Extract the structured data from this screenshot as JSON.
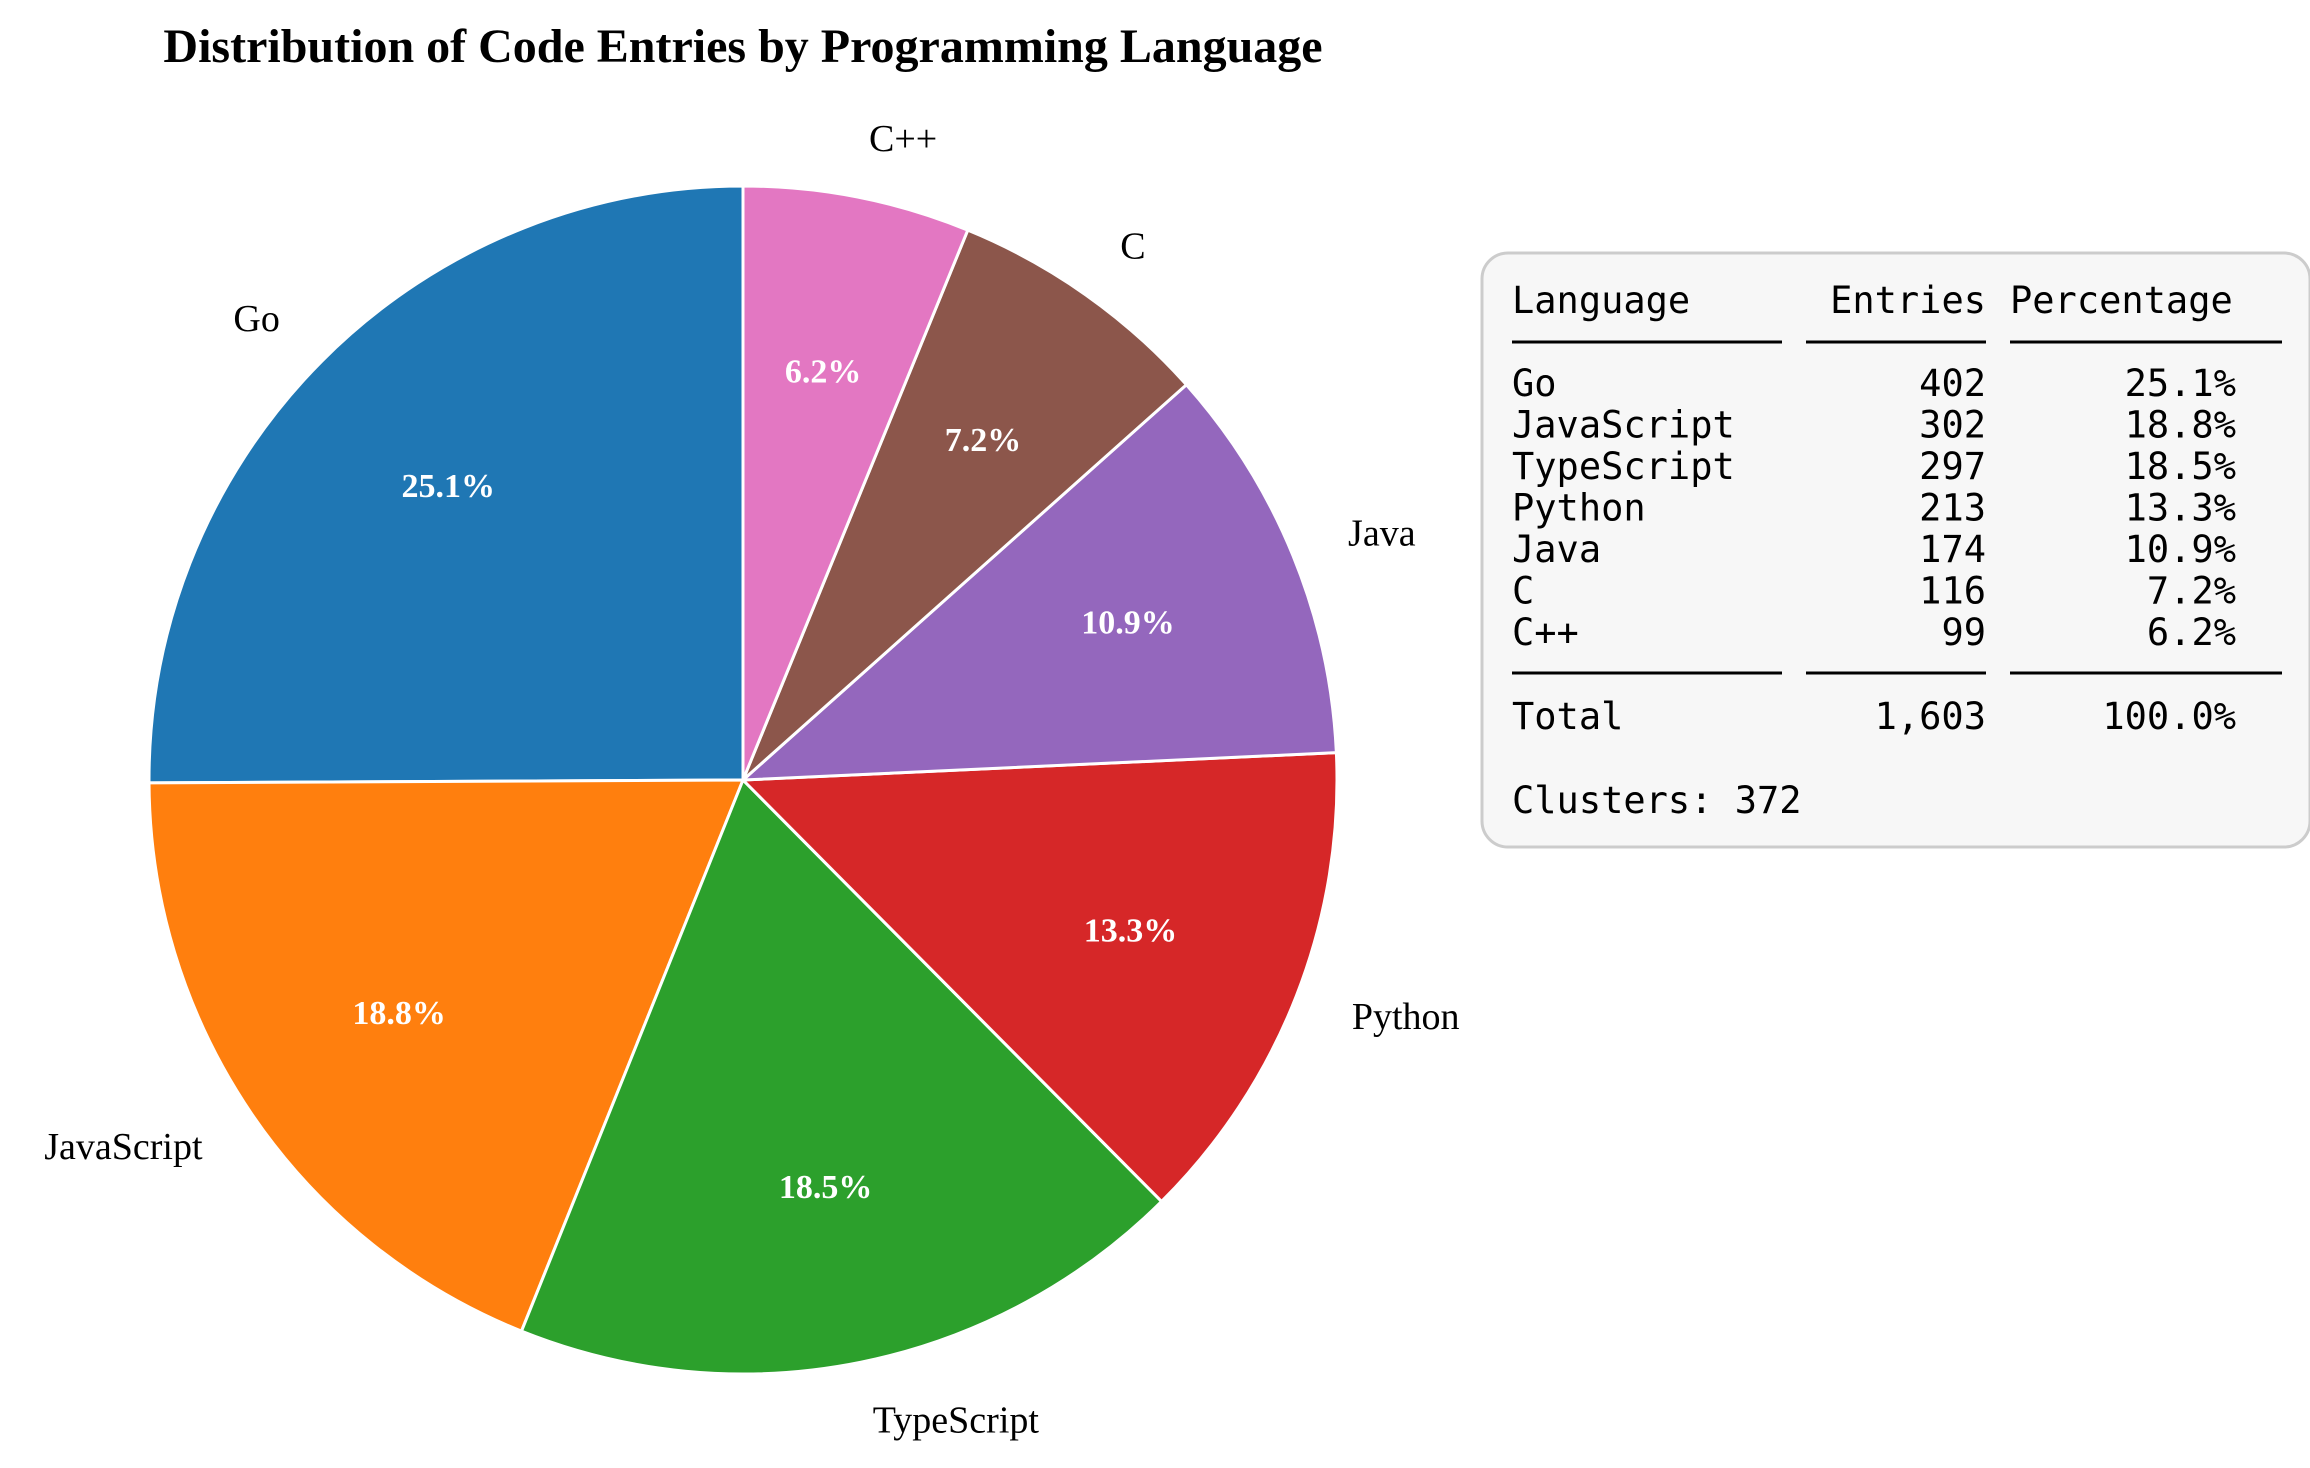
{
  "chart_data": {
    "type": "pie",
    "title": "Distribution of Code Entries by Programming Language",
    "start_angle_deg": 90,
    "direction": "counterclockwise",
    "slices": [
      {
        "label": "Go",
        "value": 402,
        "pct_label": "25.1%",
        "color": "#1f77b4"
      },
      {
        "label": "JavaScript",
        "value": 302,
        "pct_label": "18.8%",
        "color": "#ff7f0e"
      },
      {
        "label": "TypeScript",
        "value": 297,
        "pct_label": "18.5%",
        "color": "#2ca02c"
      },
      {
        "label": "Python",
        "value": 213,
        "pct_label": "13.3%",
        "color": "#d62728"
      },
      {
        "label": "Java",
        "value": 174,
        "pct_label": "10.9%",
        "color": "#9467bd"
      },
      {
        "label": "C",
        "value": 116,
        "pct_label": "7.2%",
        "color": "#8c564b"
      },
      {
        "label": "C++",
        "value": 99,
        "pct_label": "6.2%",
        "color": "#e377c2"
      }
    ]
  },
  "summary_table": {
    "headers": {
      "language": "Language",
      "entries": "Entries",
      "percentage": "Percentage"
    },
    "rows": [
      {
        "language": "Go",
        "entries": "402",
        "percentage": "25.1%"
      },
      {
        "language": "JavaScript",
        "entries": "302",
        "percentage": "18.8%"
      },
      {
        "language": "TypeScript",
        "entries": "297",
        "percentage": "18.5%"
      },
      {
        "language": "Python",
        "entries": "213",
        "percentage": "13.3%"
      },
      {
        "language": "Java",
        "entries": "174",
        "percentage": "10.9%"
      },
      {
        "language": "C",
        "entries": "116",
        "percentage": "7.2%"
      },
      {
        "language": "C++",
        "entries": "99",
        "percentage": "6.2%"
      }
    ],
    "total": {
      "language": "Total",
      "entries": "1,603",
      "percentage": "100.0%"
    },
    "clusters": "Clusters: 372",
    "box_fill": "#f7f7f7",
    "box_border": "#cccccc"
  }
}
